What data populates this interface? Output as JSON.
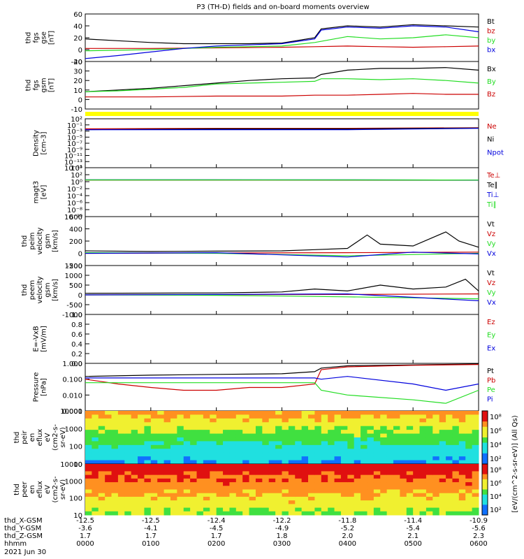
{
  "title": "P3 (TH-D) fields and on-board moments overview",
  "colors": {
    "black": "#000000",
    "red": "#cc0000",
    "green": "#22dd22",
    "blue": "#0000dd",
    "yellow": "#ffff00"
  },
  "chart_data": [
    {
      "id": "panel-fgs-gse",
      "type": "line",
      "ylabel_lines": [
        "thd",
        "fgs",
        "gse",
        "[nT]"
      ],
      "ylim": [
        -20,
        60
      ],
      "yticks": [
        "60",
        "40",
        "20",
        "0",
        "-20"
      ],
      "series": [
        {
          "name": "Bt",
          "color": "black",
          "x": [
            0,
            0.5,
            1,
            1.5,
            2,
            2.5,
            3,
            3.5,
            3.6,
            4,
            4.5,
            5,
            5.5,
            6
          ],
          "y": [
            18,
            15,
            12,
            10,
            10,
            10,
            11,
            20,
            35,
            40,
            38,
            42,
            40,
            38
          ]
        },
        {
          "name": "bz",
          "color": "red",
          "x": [
            0,
            1,
            2,
            3,
            3.5,
            4,
            4.5,
            5,
            5.5,
            6
          ],
          "y": [
            2,
            2,
            3,
            4,
            5,
            6,
            5,
            4,
            5,
            6
          ]
        },
        {
          "name": "by",
          "color": "green",
          "x": [
            0,
            1,
            2,
            3,
            3.5,
            4,
            4.5,
            5,
            5.5,
            6
          ],
          "y": [
            -2,
            0,
            4,
            6,
            12,
            22,
            18,
            20,
            25,
            20
          ]
        },
        {
          "name": "bx",
          "color": "blue",
          "x": [
            0,
            0.5,
            1,
            1.5,
            2,
            2.5,
            3,
            3.5,
            3.6,
            4,
            4.5,
            5,
            5.5,
            6
          ],
          "y": [
            -15,
            -10,
            -4,
            2,
            6,
            8,
            10,
            18,
            33,
            38,
            36,
            40,
            38,
            30
          ]
        }
      ]
    },
    {
      "id": "panel-fgs-gsm",
      "type": "line",
      "ylabel_lines": [
        "thd",
        "fgs",
        "gsm",
        "[nT]"
      ],
      "ylim": [
        -15,
        40
      ],
      "yticks": [
        "40",
        "30",
        "20",
        "10",
        "0",
        "-10"
      ],
      "series": [
        {
          "name": "Bx",
          "color": "black",
          "x": [
            0,
            0.5,
            1,
            1.5,
            2,
            2.5,
            3,
            3.5,
            3.6,
            4,
            4.5,
            5,
            5.5,
            6
          ],
          "y": [
            5,
            7,
            9,
            12,
            15,
            18,
            20,
            21,
            25,
            30,
            32,
            32,
            33,
            30
          ]
        },
        {
          "name": "By",
          "color": "green",
          "x": [
            0,
            0.5,
            1,
            1.5,
            2,
            2.5,
            3,
            3.5,
            3.6,
            4,
            4.5,
            5,
            5.5,
            6
          ],
          "y": [
            5,
            6,
            8,
            10,
            14,
            15,
            16,
            17,
            20,
            20,
            19,
            20,
            18,
            15
          ]
        },
        {
          "name": "Bz",
          "color": "red",
          "x": [
            0,
            1,
            2,
            3,
            3.5,
            4,
            4.5,
            5,
            5.5,
            6
          ],
          "y": [
            -1,
            -1,
            0,
            0,
            1,
            1,
            2,
            3,
            2,
            2
          ]
        }
      ]
    },
    {
      "id": "panel-density",
      "type": "line",
      "ylabel_lines": [
        "Density",
        "[cm-3]"
      ],
      "ylim_log": [
        -15,
        3
      ],
      "yticks": [
        "10²",
        "10⁻¹",
        "10⁻³",
        "10⁻⁵",
        "10⁻⁷",
        "10⁻⁹",
        "10⁻¹¹",
        "10⁻¹³",
        "10⁻¹⁵"
      ],
      "series": [
        {
          "name": "Ne",
          "color": "red",
          "x": [
            0,
            2,
            4,
            6
          ],
          "y": [
            0.2,
            0.3,
            0.3,
            0.5
          ]
        },
        {
          "name": "Ni",
          "color": "black",
          "x": [
            0,
            2,
            4,
            6
          ],
          "y": [
            0.1,
            0.2,
            0.2,
            0.4
          ]
        },
        {
          "name": "Npot",
          "color": "blue",
          "x": [
            0,
            2,
            4,
            6
          ],
          "y": [
            0.1,
            0.1,
            0.1,
            0.3
          ]
        }
      ]
    },
    {
      "id": "panel-temp",
      "type": "line",
      "ylabel_lines": [
        "magt3",
        "[eV]"
      ],
      "ylim_log": [
        -10,
        4
      ],
      "yticks": [
        "10⁴",
        "10²",
        "10⁰",
        "10⁻²",
        "10⁻⁴",
        "10⁻⁶",
        "10⁻⁸",
        "10⁻¹⁰"
      ],
      "series": [
        {
          "name": "Te⊥",
          "color": "red",
          "x": [
            0,
            2,
            4,
            6
          ],
          "y": [
            3.0,
            3.0,
            2.9,
            2.7
          ]
        },
        {
          "name": "Te∥",
          "color": "black",
          "x": [
            0,
            2,
            4,
            6
          ],
          "y": [
            3.1,
            3.1,
            3.0,
            2.8
          ]
        },
        {
          "name": "Ti⊥",
          "color": "blue",
          "x": [
            0,
            2,
            4,
            6
          ],
          "y": [
            3.3,
            3.3,
            3.3,
            3.0
          ]
        },
        {
          "name": "Ti∥",
          "color": "green",
          "x": [
            0,
            2,
            4,
            6
          ],
          "y": [
            3.2,
            3.2,
            3.1,
            2.9
          ]
        }
      ]
    },
    {
      "id": "panel-peim",
      "type": "line",
      "ylabel_lines": [
        "thd",
        "peim",
        "velocity",
        "gsm",
        "[km/s]"
      ],
      "ylim": [
        -200,
        600
      ],
      "yticks": [
        "600",
        "400",
        "200",
        "0",
        "-200"
      ],
      "series": [
        {
          "name": "Vt",
          "color": "black",
          "x": [
            0,
            1,
            2,
            3,
            3.5,
            4,
            4.3,
            4.5,
            5,
            5.5,
            5.7,
            6
          ],
          "y": [
            40,
            30,
            35,
            40,
            60,
            80,
            300,
            150,
            120,
            350,
            200,
            100
          ]
        },
        {
          "name": "Vz",
          "color": "red",
          "x": [
            0,
            2,
            4,
            6
          ],
          "y": [
            0,
            5,
            10,
            20
          ]
        },
        {
          "name": "Vy",
          "color": "green",
          "x": [
            0,
            2,
            4,
            5,
            6
          ],
          "y": [
            10,
            0,
            -40,
            -20,
            0
          ]
        },
        {
          "name": "Vx",
          "color": "blue",
          "x": [
            0,
            2,
            4,
            5,
            6
          ],
          "y": [
            0,
            10,
            -60,
            20,
            -10
          ]
        }
      ]
    },
    {
      "id": "panel-peem",
      "type": "line",
      "ylabel_lines": [
        "thd",
        "peem",
        "velocity",
        "gsm",
        "[km/s]"
      ],
      "ylim": [
        -1000,
        1500
      ],
      "yticks": [
        "1500",
        "1000",
        "500",
        "0",
        "-500",
        "-1000"
      ],
      "series": [
        {
          "name": "Vt",
          "color": "black",
          "x": [
            0,
            1,
            2,
            3,
            3.5,
            4,
            4.5,
            5,
            5.5,
            5.8,
            6
          ],
          "y": [
            80,
            90,
            100,
            150,
            300,
            200,
            500,
            300,
            400,
            800,
            200
          ]
        },
        {
          "name": "Vz",
          "color": "red",
          "x": [
            0,
            2,
            4,
            6
          ],
          "y": [
            0,
            10,
            20,
            50
          ]
        },
        {
          "name": "Vy",
          "color": "green",
          "x": [
            0,
            2,
            4,
            6
          ],
          "y": [
            0,
            -20,
            -100,
            -200
          ]
        },
        {
          "name": "Vx",
          "color": "blue",
          "x": [
            0,
            2,
            4,
            6
          ],
          "y": [
            0,
            20,
            50,
            -300
          ]
        }
      ]
    },
    {
      "id": "panel-e",
      "type": "line",
      "ylabel_lines": [
        "E=-VxB",
        "[mV/m]"
      ],
      "ylim": [
        0,
        1
      ],
      "yticks": [
        "1.0",
        "0.8",
        "0.6",
        "0.4",
        "0.2",
        "0.0"
      ],
      "series": [
        {
          "name": "Ez",
          "color": "red",
          "x": [],
          "y": []
        },
        {
          "name": "Ey",
          "color": "green",
          "x": [],
          "y": []
        },
        {
          "name": "Ex",
          "color": "blue",
          "x": [],
          "y": []
        }
      ]
    },
    {
      "id": "panel-pressure",
      "type": "line",
      "ylabel_lines": [
        "Pressure",
        "[nPa]"
      ],
      "ylim_log": [
        -3,
        0
      ],
      "yticks": [
        "1.000",
        "0.100",
        "0.010",
        "0.001"
      ],
      "series": [
        {
          "name": "Pt",
          "color": "black",
          "x": [
            0,
            1,
            2,
            3,
            3.5,
            3.6,
            4,
            5,
            6
          ],
          "y": [
            0.15,
            0.18,
            0.2,
            0.22,
            0.3,
            0.5,
            0.7,
            0.8,
            0.9
          ]
        },
        {
          "name": "Pb",
          "color": "red",
          "x": [
            0,
            0.5,
            1,
            1.5,
            2,
            2.5,
            3,
            3.5,
            3.6,
            4,
            5,
            6
          ],
          "y": [
            0.1,
            0.05,
            0.03,
            0.02,
            0.02,
            0.03,
            0.03,
            0.05,
            0.4,
            0.6,
            0.75,
            0.85
          ]
        },
        {
          "name": "Pe",
          "color": "green",
          "x": [
            0,
            1,
            2,
            3,
            3.5,
            3.6,
            4,
            5,
            5.5,
            6
          ],
          "y": [
            0.06,
            0.06,
            0.06,
            0.06,
            0.06,
            0.02,
            0.01,
            0.005,
            0.003,
            0.02
          ]
        },
        {
          "name": "Pi",
          "color": "blue",
          "x": [
            0,
            1,
            2,
            3,
            3.5,
            3.6,
            4,
            5,
            5.5,
            6
          ],
          "y": [
            0.12,
            0.12,
            0.12,
            0.12,
            0.12,
            0.1,
            0.15,
            0.05,
            0.02,
            0.05
          ]
        }
      ]
    },
    {
      "id": "panel-peir",
      "type": "heatmap",
      "ylabel_lines": [
        "thd",
        "peir",
        "en",
        "eflux",
        "eV",
        "(cm2-s-",
        "sr-eV)"
      ],
      "ylim_log": [
        0.7,
        4.3
      ],
      "yticks": [
        "10000",
        "1000",
        "100",
        "10"
      ]
    },
    {
      "id": "panel-peer",
      "type": "heatmap",
      "ylabel_lines": [
        "thd",
        "peer",
        "en",
        "eflux",
        "eV",
        "(cm2-s-",
        "sr-eV)"
      ],
      "ylim_log": [
        0.7,
        4.3
      ],
      "yticks": [
        "10000",
        "1000",
        "100",
        "10"
      ]
    }
  ],
  "colorbars": [
    {
      "ticks": [
        "10⁸",
        "10⁶",
        "10⁴",
        "10²"
      ]
    },
    {
      "ticks": [
        "10⁸",
        "10⁶",
        "10⁴",
        "10²"
      ]
    }
  ],
  "colorbar_label": "[eV/(cm^2-s-sr-eV)] (All Qs)",
  "x_axis": {
    "ticks_time": [
      "0000",
      "0100",
      "0200",
      "0300",
      "0400",
      "0500",
      "0600"
    ],
    "rows": [
      {
        "label": "thd_X-GSM",
        "values": [
          "-12.5",
          "-12.5",
          "-12.4",
          "-12.2",
          "-11.8",
          "-11.4",
          "-10.9"
        ]
      },
      {
        "label": "thd_Y-GSM",
        "values": [
          "-3.6",
          "-4.1",
          "-4.5",
          "-4.9",
          "-5.2",
          "-5.4",
          "-5.6"
        ]
      },
      {
        "label": "thd_Z-GSM",
        "values": [
          "1.7",
          "1.7",
          "1.7",
          "1.8",
          "2.0",
          "2.1",
          "2.3"
        ]
      },
      {
        "label": "hhmm",
        "values": [
          "0000",
          "0100",
          "0200",
          "0300",
          "0400",
          "0500",
          "0600"
        ]
      }
    ],
    "date": "2021 Jun 30"
  }
}
